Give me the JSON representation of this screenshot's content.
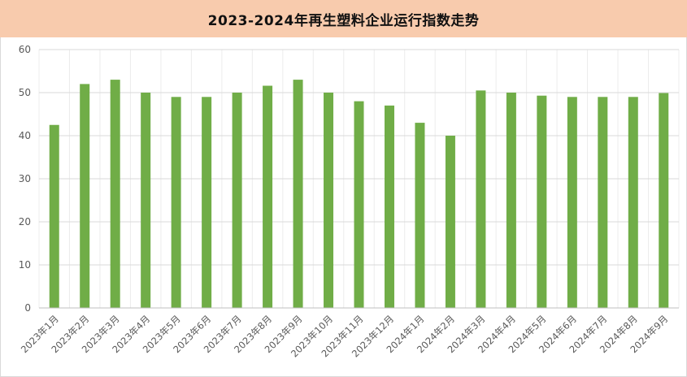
{
  "chart_data": {
    "type": "bar",
    "title": "2023-2024年再生塑料企业运行指数走势",
    "categories": [
      "2023年1月",
      "2023年2月",
      "2023年3月",
      "2023年4月",
      "2023年5月",
      "2023年6月",
      "2023年7月",
      "2023年8月",
      "2023年9月",
      "2023年10月",
      "2023年11月",
      "2023年12月",
      "2024年1月",
      "2024年2月",
      "2024年3月",
      "2024年4月",
      "2024年5月",
      "2024年6月",
      "2024年7月",
      "2024年8月",
      "2024年9月"
    ],
    "values": [
      42.5,
      52,
      53,
      50,
      49,
      49,
      50,
      51.6,
      53,
      50,
      48,
      47,
      43,
      40,
      50.5,
      50,
      49.3,
      49,
      49,
      49,
      49.9
    ],
    "ylim": [
      0,
      60
    ],
    "yticks": [
      0,
      10,
      20,
      30,
      40,
      50,
      60
    ],
    "grid": true,
    "xlabel": "",
    "ylabel": "",
    "colors": {
      "bar": "#70ad47",
      "title_band": "#f8cbad",
      "grid": "#d9d9d9",
      "axis_text": "#595959"
    }
  }
}
